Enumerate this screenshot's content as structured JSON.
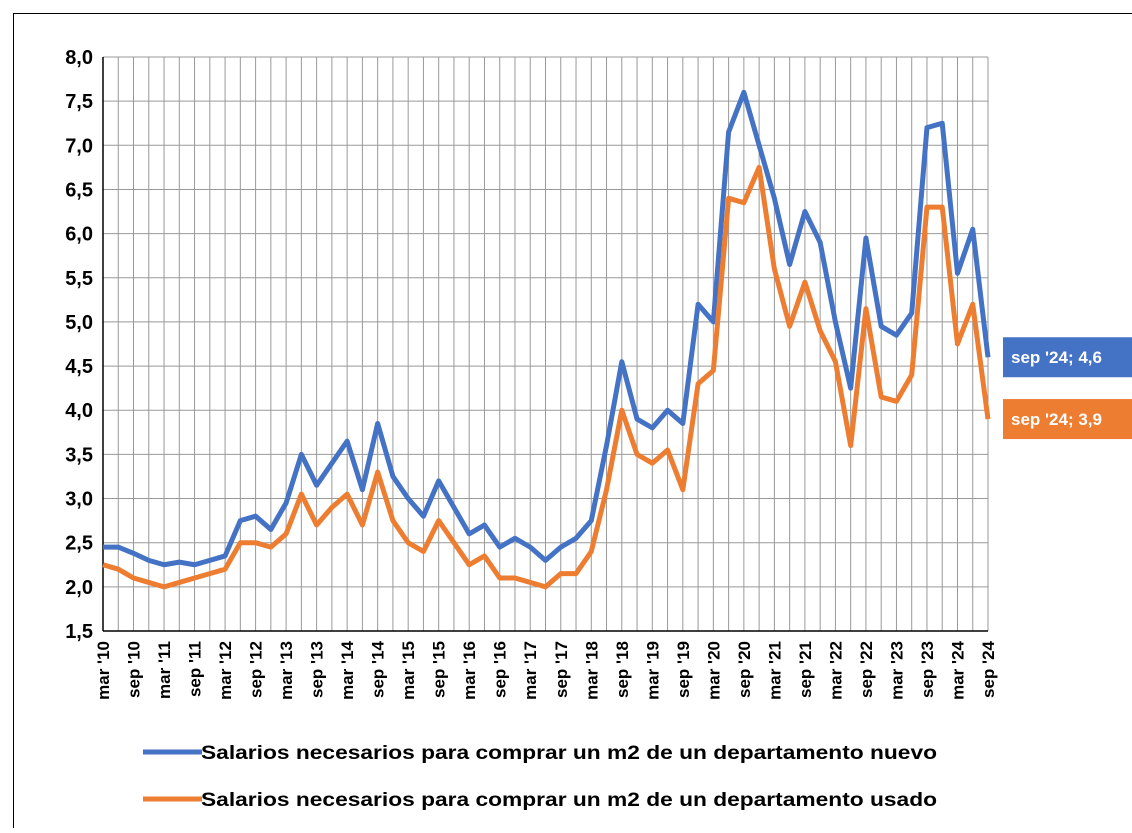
{
  "chart_data": {
    "type": "line",
    "categories": [
      "mar '10",
      null,
      "sep '10",
      null,
      "mar '11",
      null,
      "sep '11",
      null,
      "mar '12",
      null,
      "sep '12",
      null,
      "mar '13",
      null,
      "sep '13",
      null,
      "mar '14",
      null,
      "sep '14",
      null,
      "mar '15",
      null,
      "sep '15",
      null,
      "mar '16",
      null,
      "sep '16",
      null,
      "mar '17",
      null,
      "sep '17",
      null,
      "mar '18",
      null,
      "sep '18",
      null,
      "mar '19",
      null,
      "sep '19",
      null,
      "mar '20",
      null,
      "sep '20",
      null,
      "mar '21",
      null,
      "sep '21",
      null,
      "mar '22",
      null,
      "sep '22",
      null,
      "mar '23",
      null,
      "sep '23",
      null,
      "mar '24",
      null,
      "sep '24"
    ],
    "series": [
      {
        "name": "Salarios necesarios para comprar un m2 de un departamento nuevo",
        "color": "#4472c4",
        "values": [
          2.45,
          2.45,
          2.38,
          2.3,
          2.25,
          2.28,
          2.25,
          2.3,
          2.35,
          2.75,
          2.8,
          2.65,
          2.95,
          3.5,
          3.15,
          3.4,
          3.65,
          3.1,
          3.85,
          3.25,
          3.0,
          2.8,
          3.2,
          2.9,
          2.6,
          2.7,
          2.45,
          2.55,
          2.45,
          2.3,
          2.45,
          2.55,
          2.75,
          3.6,
          4.55,
          3.9,
          3.8,
          4.0,
          3.85,
          5.2,
          5.0,
          7.15,
          7.6,
          7.0,
          6.4,
          5.65,
          6.25,
          5.9,
          5.0,
          4.25,
          5.95,
          4.95,
          4.85,
          5.1,
          7.2,
          7.25,
          5.55,
          6.05,
          4.6
        ],
        "value_labels": [
          null,
          null,
          null,
          null,
          null,
          null,
          null,
          null,
          null,
          null,
          null,
          null,
          null,
          null,
          null,
          null,
          null,
          null,
          null,
          null,
          null,
          null,
          null,
          null,
          null,
          null,
          null,
          null,
          null,
          null,
          null,
          null,
          null,
          null,
          null,
          null,
          null,
          null,
          null,
          null,
          null,
          null,
          null,
          null,
          null,
          null,
          null,
          null,
          null,
          null,
          null,
          null,
          null,
          null,
          null,
          null,
          null,
          null,
          "sep '24; 4,6"
        ]
      },
      {
        "name": "Salarios necesarios para comprar un m2 de un departamento usado",
        "color": "#ed7d31",
        "values": [
          2.25,
          2.2,
          2.1,
          2.05,
          2.0,
          2.05,
          2.1,
          2.15,
          2.2,
          2.5,
          2.5,
          2.45,
          2.6,
          3.05,
          2.7,
          2.9,
          3.05,
          2.7,
          3.3,
          2.75,
          2.5,
          2.4,
          2.75,
          2.5,
          2.25,
          2.35,
          2.1,
          2.1,
          2.05,
          2.0,
          2.15,
          2.15,
          2.4,
          3.1,
          4.0,
          3.5,
          3.4,
          3.55,
          3.1,
          4.3,
          4.45,
          6.4,
          6.35,
          6.75,
          5.6,
          4.95,
          5.45,
          4.9,
          4.55,
          3.6,
          5.15,
          4.15,
          4.1,
          4.4,
          6.3,
          6.3,
          4.75,
          5.2,
          3.9
        ],
        "value_labels": [
          null,
          null,
          null,
          null,
          null,
          null,
          null,
          null,
          null,
          null,
          null,
          null,
          null,
          null,
          null,
          null,
          null,
          null,
          null,
          null,
          null,
          null,
          null,
          null,
          null,
          null,
          null,
          null,
          null,
          null,
          null,
          null,
          null,
          null,
          null,
          null,
          null,
          null,
          null,
          null,
          null,
          null,
          null,
          null,
          null,
          null,
          null,
          null,
          null,
          null,
          null,
          null,
          null,
          null,
          null,
          null,
          null,
          null,
          "sep '24; 3,9"
        ]
      }
    ],
    "ylim": [
      1.5,
      8.0
    ],
    "yticks": [
      {
        "value": 1.5,
        "label": "1,5"
      },
      {
        "value": 2.0,
        "label": "2,0"
      },
      {
        "value": 2.5,
        "label": "2,5"
      },
      {
        "value": 3.0,
        "label": "3,0"
      },
      {
        "value": 3.5,
        "label": "3,5"
      },
      {
        "value": 4.0,
        "label": "4,0"
      },
      {
        "value": 4.5,
        "label": "4,5"
      },
      {
        "value": 5.0,
        "label": "5,0"
      },
      {
        "value": 5.5,
        "label": "5,5"
      },
      {
        "value": 6.0,
        "label": "6,0"
      },
      {
        "value": 6.5,
        "label": "6,5"
      },
      {
        "value": 7.0,
        "label": "7,0"
      },
      {
        "value": 7.5,
        "label": "7,5"
      },
      {
        "value": 8.0,
        "label": "8,0"
      }
    ],
    "grid": true
  }
}
